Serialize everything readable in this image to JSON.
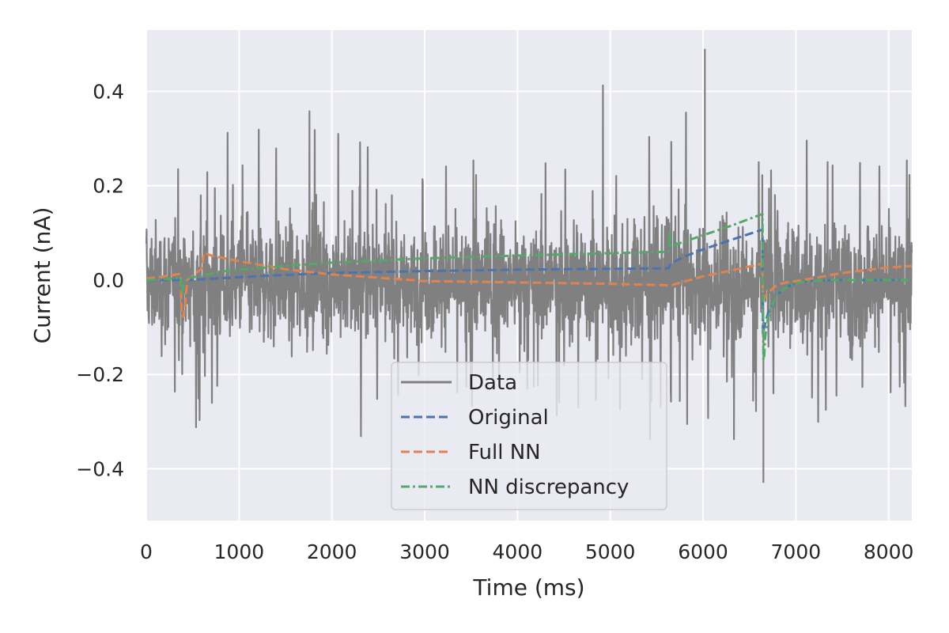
{
  "chart_data": {
    "type": "line",
    "xlabel": "Time (ms)",
    "ylabel": "Current (nA)",
    "xlim": [
      0,
      8250
    ],
    "ylim": [
      -0.51,
      0.53
    ],
    "x_ticks": [
      0,
      1000,
      2000,
      3000,
      4000,
      5000,
      6000,
      7000,
      8000
    ],
    "x_tick_labels": [
      "0",
      "1000",
      "2000",
      "3000",
      "4000",
      "5000",
      "6000",
      "7000",
      "8000"
    ],
    "y_ticks": [
      -0.4,
      -0.2,
      0.0,
      0.2,
      0.4
    ],
    "y_tick_labels": [
      "−0.4",
      "−0.2",
      "0.0",
      "0.2",
      "0.4"
    ],
    "grid": true,
    "legend_position": "lower-center",
    "colors": {
      "background": "#eaeaf2",
      "grid": "#ffffff",
      "data": "#808080",
      "original": "#4c72b0",
      "full_nn": "#dd8452",
      "nn_discrepancy": "#55a868"
    },
    "data_trace": {
      "name": "Data",
      "style": "solid",
      "typical_range": [
        -0.28,
        0.27
      ],
      "max_spike": {
        "x": 6020,
        "y": 0.49
      },
      "min_spike": {
        "x": 6650,
        "y": -0.43
      }
    },
    "series": [
      {
        "name": "Original",
        "style": "dashed",
        "x": [
          0,
          300,
          360,
          400,
          460,
          620,
          1000,
          1500,
          2000,
          3000,
          4000,
          5000,
          5630,
          5650,
          5800,
          6000,
          6300,
          6640,
          6645,
          6660,
          6700,
          6750,
          6800,
          6900,
          7000,
          7100,
          7200,
          7500,
          8000,
          8250
        ],
        "y": [
          0.0,
          0.0,
          0.0,
          0.0,
          0.0,
          0.002,
          0.006,
          0.011,
          0.015,
          0.019,
          0.022,
          0.024,
          0.025,
          0.035,
          0.05,
          0.065,
          0.085,
          0.107,
          -0.115,
          -0.1,
          -0.07,
          -0.05,
          -0.03,
          -0.015,
          -0.007,
          -0.003,
          -0.001,
          0.0,
          0.0,
          0.0
        ]
      },
      {
        "name": "Full NN",
        "style": "dashed",
        "x": [
          0,
          200,
          330,
          370,
          380,
          400,
          420,
          440,
          600,
          620,
          700,
          1000,
          1500,
          2000,
          3000,
          4000,
          5000,
          5600,
          5640,
          5800,
          6000,
          6300,
          6640,
          6645,
          6700,
          6750,
          6800,
          6900,
          7000,
          7100,
          7300,
          7500,
          7800,
          8000,
          8250
        ],
        "y": [
          0.003,
          0.008,
          0.012,
          0.013,
          -0.07,
          -0.078,
          -0.05,
          0.0,
          0.025,
          0.058,
          0.052,
          0.04,
          0.023,
          0.012,
          -0.002,
          -0.005,
          -0.008,
          -0.011,
          -0.012,
          -0.003,
          0.008,
          0.02,
          0.035,
          -0.04,
          -0.028,
          -0.018,
          -0.01,
          -0.005,
          -0.002,
          0.001,
          0.008,
          0.015,
          0.022,
          0.027,
          0.03
        ]
      },
      {
        "name": "NN discrepancy",
        "style": "dashdot",
        "x": [
          0,
          200,
          370,
          380,
          390,
          400,
          420,
          440,
          600,
          620,
          800,
          1000,
          1500,
          2000,
          3000,
          4000,
          5000,
          5630,
          5640,
          5650,
          5660,
          5700,
          6000,
          6300,
          6640,
          6650,
          6660,
          6670,
          6700,
          6750,
          6800,
          6900,
          7000,
          7100,
          7300,
          7500,
          8000,
          8250
        ],
        "y": [
          0.0,
          0.002,
          0.005,
          -0.02,
          -0.03,
          -0.01,
          0.0,
          0.005,
          0.008,
          0.01,
          0.018,
          0.022,
          0.03,
          0.037,
          0.046,
          0.052,
          0.057,
          0.06,
          0.105,
          0.08,
          0.07,
          0.075,
          0.095,
          0.115,
          0.14,
          -0.17,
          -0.16,
          -0.12,
          -0.08,
          -0.05,
          -0.03,
          -0.015,
          -0.007,
          -0.003,
          0.0,
          0.0,
          0.0,
          0.0
        ]
      }
    ]
  }
}
